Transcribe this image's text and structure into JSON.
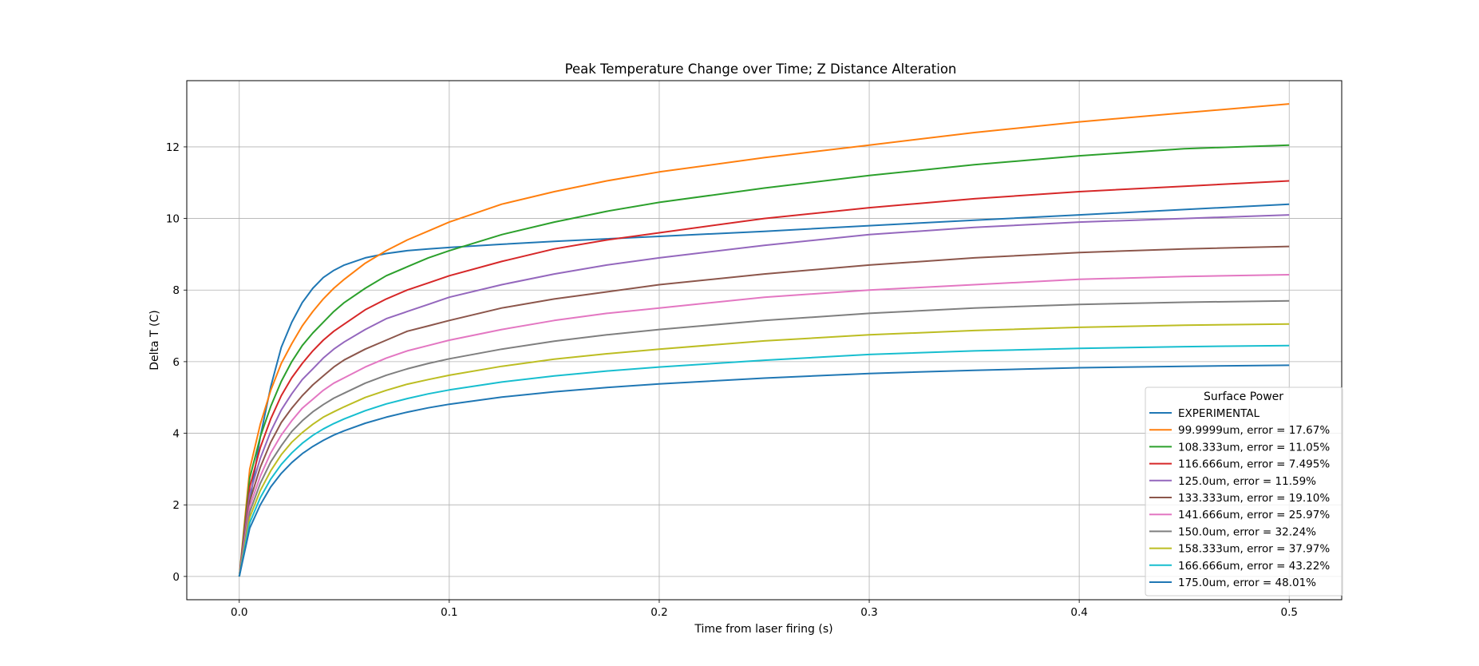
{
  "chart_data": {
    "type": "line",
    "title": "Peak Temperature Change over Time; Z Distance Alteration",
    "xlabel": "Time from laser firing (s)",
    "ylabel": "Delta T (C)",
    "xlim": [
      -0.025,
      0.525
    ],
    "ylim": [
      -0.65,
      13.85
    ],
    "xticks": [
      0.0,
      0.1,
      0.2,
      0.3,
      0.4,
      0.5
    ],
    "xtick_labels": [
      "0.0",
      "0.1",
      "0.2",
      "0.3",
      "0.4",
      "0.5"
    ],
    "yticks": [
      0,
      2,
      4,
      6,
      8,
      10,
      12
    ],
    "ytick_labels": [
      "0",
      "2",
      "4",
      "6",
      "8",
      "10",
      "12"
    ],
    "grid": true,
    "legend": {
      "title": "Surface Power",
      "placement": "lower right"
    },
    "x": [
      0.0,
      0.005,
      0.01,
      0.015,
      0.02,
      0.025,
      0.03,
      0.035,
      0.04,
      0.045,
      0.05,
      0.06,
      0.07,
      0.08,
      0.09,
      0.1,
      0.125,
      0.15,
      0.175,
      0.2,
      0.25,
      0.3,
      0.35,
      0.4,
      0.45,
      0.5
    ],
    "series": [
      {
        "name": "EXPERIMENTAL",
        "color": "#1f77b4",
        "values": [
          0.0,
          2.1,
          3.9,
          5.3,
          6.4,
          7.1,
          7.65,
          8.05,
          8.35,
          8.55,
          8.7,
          8.9,
          9.02,
          9.1,
          9.15,
          9.19,
          9.28,
          9.36,
          9.43,
          9.5,
          9.64,
          9.8,
          9.95,
          10.1,
          10.25,
          10.4
        ]
      },
      {
        "name": "99.9999um, error = 17.67%",
        "color": "#ff7f0e",
        "values": [
          0.0,
          3.0,
          4.25,
          5.2,
          5.95,
          6.5,
          7.0,
          7.4,
          7.75,
          8.05,
          8.3,
          8.75,
          9.1,
          9.4,
          9.65,
          9.9,
          10.4,
          10.75,
          11.05,
          11.3,
          11.7,
          12.05,
          12.4,
          12.7,
          12.95,
          13.2
        ]
      },
      {
        "name": "108.333um, error = 11.05%",
        "color": "#2ca02c",
        "values": [
          0.0,
          2.75,
          3.9,
          4.75,
          5.45,
          6.0,
          6.45,
          6.8,
          7.1,
          7.4,
          7.65,
          8.05,
          8.4,
          8.65,
          8.9,
          9.1,
          9.55,
          9.9,
          10.2,
          10.45,
          10.85,
          11.2,
          11.5,
          11.75,
          11.95,
          12.05
        ]
      },
      {
        "name": "116.666um, error = 7.495%",
        "color": "#d62728",
        "values": [
          0.0,
          2.5,
          3.6,
          4.4,
          5.05,
          5.55,
          5.95,
          6.3,
          6.6,
          6.85,
          7.05,
          7.45,
          7.75,
          8.0,
          8.2,
          8.4,
          8.8,
          9.15,
          9.4,
          9.6,
          10.0,
          10.3,
          10.55,
          10.75,
          10.9,
          11.05
        ]
      },
      {
        "name": "125.0um, error = 11.59%",
        "color": "#9467bd",
        "values": [
          0.0,
          2.3,
          3.3,
          4.05,
          4.65,
          5.1,
          5.5,
          5.8,
          6.1,
          6.35,
          6.55,
          6.9,
          7.2,
          7.4,
          7.6,
          7.8,
          8.15,
          8.45,
          8.7,
          8.9,
          9.25,
          9.55,
          9.75,
          9.9,
          10.0,
          10.1
        ]
      },
      {
        "name": "133.333um, error = 19.10%",
        "color": "#8c564b",
        "values": [
          0.0,
          2.1,
          3.05,
          3.75,
          4.3,
          4.7,
          5.05,
          5.35,
          5.6,
          5.85,
          6.05,
          6.35,
          6.6,
          6.85,
          7.0,
          7.15,
          7.5,
          7.75,
          7.95,
          8.15,
          8.45,
          8.7,
          8.9,
          9.05,
          9.15,
          9.22
        ]
      },
      {
        "name": "141.666um, error = 25.97%",
        "color": "#e377c2",
        "values": [
          0.0,
          1.95,
          2.8,
          3.45,
          3.95,
          4.35,
          4.7,
          4.95,
          5.2,
          5.4,
          5.55,
          5.85,
          6.1,
          6.3,
          6.45,
          6.6,
          6.9,
          7.15,
          7.35,
          7.5,
          7.8,
          8.0,
          8.15,
          8.3,
          8.38,
          8.43
        ]
      },
      {
        "name": "150.0um, error = 32.24%",
        "color": "#7f7f7f",
        "values": [
          0.0,
          1.8,
          2.6,
          3.2,
          3.65,
          4.05,
          4.35,
          4.6,
          4.8,
          4.98,
          5.12,
          5.4,
          5.62,
          5.8,
          5.95,
          6.08,
          6.35,
          6.57,
          6.75,
          6.9,
          7.15,
          7.35,
          7.5,
          7.6,
          7.66,
          7.7
        ]
      },
      {
        "name": "158.333um, error = 37.97%",
        "color": "#bcbd22",
        "values": [
          0.0,
          1.65,
          2.4,
          2.95,
          3.4,
          3.75,
          4.02,
          4.25,
          4.45,
          4.6,
          4.74,
          5.0,
          5.2,
          5.37,
          5.5,
          5.62,
          5.87,
          6.07,
          6.22,
          6.35,
          6.58,
          6.75,
          6.87,
          6.96,
          7.02,
          7.05
        ]
      },
      {
        "name": "166.666um, error = 43.22%",
        "color": "#17becf",
        "values": [
          0.0,
          1.5,
          2.2,
          2.72,
          3.13,
          3.45,
          3.72,
          3.94,
          4.12,
          4.27,
          4.4,
          4.63,
          4.82,
          4.97,
          5.1,
          5.21,
          5.43,
          5.6,
          5.74,
          5.85,
          6.04,
          6.2,
          6.3,
          6.37,
          6.42,
          6.45
        ]
      },
      {
        "name": "175.0um, error = 48.01%",
        "color": "#1f77b4",
        "values": [
          0.0,
          1.35,
          2.0,
          2.5,
          2.88,
          3.18,
          3.43,
          3.63,
          3.8,
          3.95,
          4.07,
          4.28,
          4.45,
          4.59,
          4.71,
          4.81,
          5.01,
          5.16,
          5.28,
          5.38,
          5.54,
          5.67,
          5.76,
          5.83,
          5.87,
          5.9
        ]
      }
    ]
  }
}
